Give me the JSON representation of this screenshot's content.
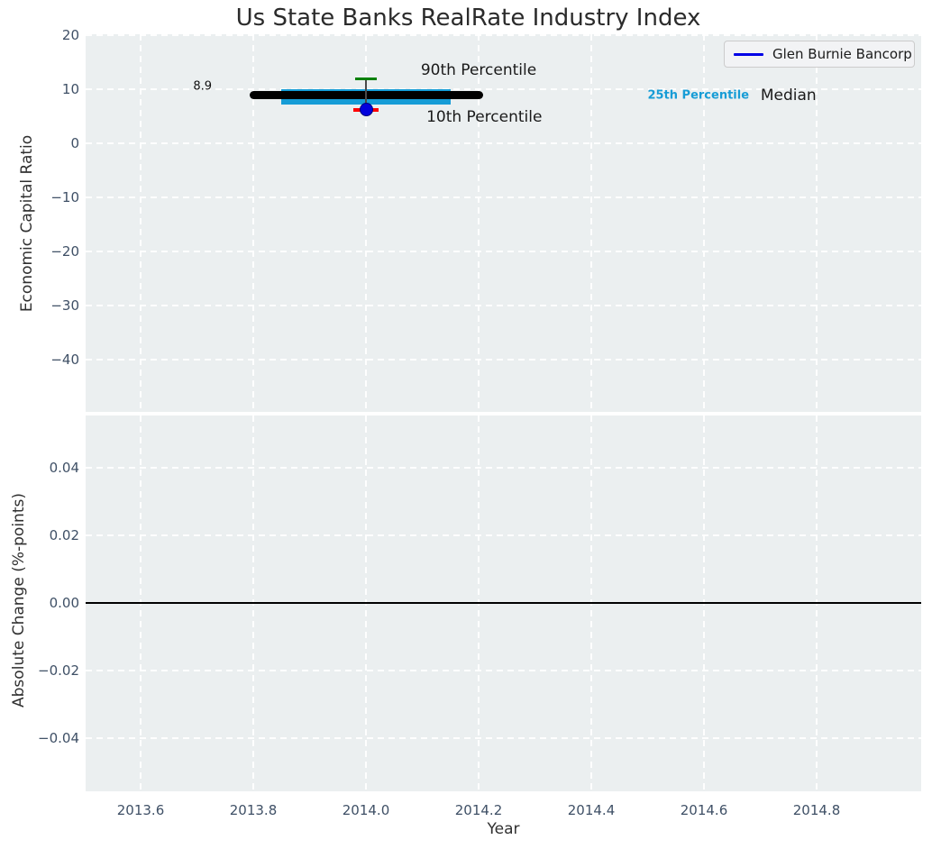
{
  "figure": {
    "title": "Us State Banks RealRate Industry Index",
    "background": "#ffffff",
    "axes_background": "#ebeff0",
    "grid_color": "#ffffff"
  },
  "legend": {
    "label": "Glen Burnie Bancorp",
    "line_color": "#0000e6",
    "position": "upper right"
  },
  "chart_data": [
    {
      "id": "economic-capital-ratio",
      "type": "line",
      "title": "Us State Banks RealRate Industry Index",
      "xlabel": "Year",
      "ylabel": "Economic Capital Ratio",
      "xlim": [
        2013.5,
        2014.99
      ],
      "ylim": [
        -49.8,
        20.2
      ],
      "grid": true,
      "legend_position": "upper right",
      "xticks": [
        {
          "v": 2013.6,
          "label": "2013.6"
        },
        {
          "v": 2013.8,
          "label": "2013.8"
        },
        {
          "v": 2014.0,
          "label": "2014.0"
        },
        {
          "v": 2014.2,
          "label": "2014.2"
        },
        {
          "v": 2014.4,
          "label": "2014.4"
        },
        {
          "v": 2014.6,
          "label": "2014.6"
        },
        {
          "v": 2014.8,
          "label": "2014.8"
        }
      ],
      "yticks": [
        {
          "v": 20,
          "label": "20"
        },
        {
          "v": 10,
          "label": "10"
        },
        {
          "v": 0,
          "label": "0"
        },
        {
          "v": -10,
          "label": "−10"
        },
        {
          "v": -20,
          "label": "−20"
        },
        {
          "v": -30,
          "label": "−30"
        },
        {
          "v": -40,
          "label": "−40"
        }
      ],
      "series": [
        {
          "name": "Median",
          "type": "line",
          "color": "#000000",
          "linewidth": 9,
          "x_start": 2013.8,
          "x_end": 2014.2,
          "y": 8.9,
          "value_label": "8.9"
        },
        {
          "name": "25th-75th Percentile Band",
          "type": "band",
          "color": "#169cd6",
          "x_start": 2013.85,
          "x_end": 2014.15,
          "y_low": 7.2,
          "y_high": 10.0
        },
        {
          "name": "Glen Burnie Bancorp",
          "type": "scatter",
          "color": "#0202dd",
          "edge_color": "#00007a",
          "marker_size": 15,
          "points": [
            {
              "x": 2014.0,
              "y": 6.2
            }
          ],
          "errorbar": {
            "x": 2014.0,
            "high": 11.9,
            "low": 6.2,
            "stem_color": "#4a4a4a",
            "high_cap_color": "#008000",
            "low_cap_color": "#ff0000"
          }
        }
      ],
      "annotations": [
        {
          "id": "median-value",
          "text": "8.9",
          "x": 2013.71,
          "y": 10.5,
          "color": "#111111",
          "size": 13,
          "weight": "normal"
        },
        {
          "id": "p90-label",
          "text": "90th Percentile",
          "x": 2014.2,
          "y": 13.5,
          "color": "#1a1a1a",
          "size": 17,
          "weight": "normal"
        },
        {
          "id": "p10-label",
          "text": "10th Percentile",
          "x": 2014.21,
          "y": 4.9,
          "color": "#1a1a1a",
          "size": 17,
          "weight": "normal"
        },
        {
          "id": "p25-label",
          "text": "25th Percentile",
          "x": 2014.59,
          "y": 8.8,
          "color": "#169cd6",
          "size": 13,
          "weight": "bold"
        },
        {
          "id": "median-label",
          "text": "Median",
          "x": 2014.75,
          "y": 8.8,
          "color": "#1a1a1a",
          "size": 17,
          "weight": "normal"
        }
      ]
    },
    {
      "id": "absolute-change",
      "type": "line",
      "xlabel": "Year",
      "ylabel": "Absolute Change (%-points)",
      "xlim": [
        2013.5,
        2014.99
      ],
      "ylim": [
        -0.0555,
        0.0555
      ],
      "grid": true,
      "xticks": [
        {
          "v": 2013.6,
          "label": "2013.6"
        },
        {
          "v": 2013.8,
          "label": "2013.8"
        },
        {
          "v": 2014.0,
          "label": "2014.0"
        },
        {
          "v": 2014.2,
          "label": "2014.2"
        },
        {
          "v": 2014.4,
          "label": "2014.4"
        },
        {
          "v": 2014.6,
          "label": "2014.6"
        },
        {
          "v": 2014.8,
          "label": "2014.8"
        }
      ],
      "yticks": [
        {
          "v": 0.04,
          "label": "0.04"
        },
        {
          "v": 0.02,
          "label": "0.02"
        },
        {
          "v": 0.0,
          "label": "0.00"
        },
        {
          "v": -0.02,
          "label": "−0.02"
        },
        {
          "v": -0.04,
          "label": "−0.04"
        }
      ],
      "zero_line": {
        "y": 0,
        "color": "#000000",
        "linewidth": 2
      },
      "series": []
    }
  ]
}
